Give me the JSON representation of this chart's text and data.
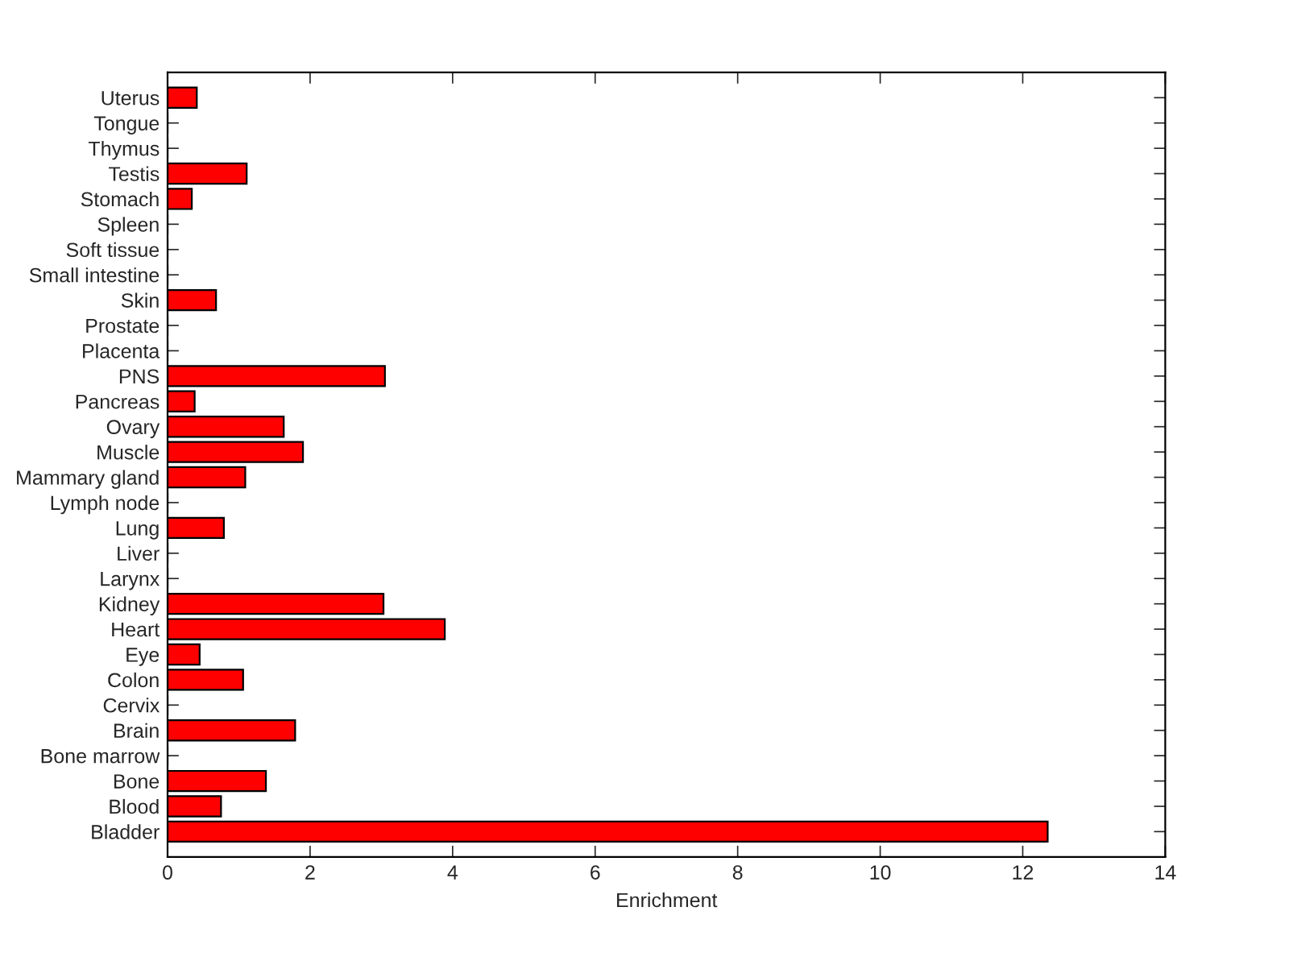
{
  "chart_data": {
    "type": "bar",
    "orientation": "horizontal",
    "xlabel": "Enrichment",
    "categories": [
      "Uterus",
      "Tongue",
      "Thymus",
      "Testis",
      "Stomach",
      "Spleen",
      "Soft tissue",
      "Small intestine",
      "Skin",
      "Prostate",
      "Placenta",
      "PNS",
      "Pancreas",
      "Ovary",
      "Muscle",
      "Mammary gland",
      "Lymph node",
      "Lung",
      "Liver",
      "Larynx",
      "Kidney",
      "Heart",
      "Eye",
      "Colon",
      "Cervix",
      "Brain",
      "Bone marrow",
      "Bone",
      "Blood",
      "Bladder"
    ],
    "values": [
      0.41,
      0,
      0,
      1.11,
      0.34,
      0,
      0,
      0,
      0.68,
      0,
      0,
      3.05,
      0.38,
      1.63,
      1.9,
      1.09,
      0,
      0.79,
      0,
      0,
      3.03,
      3.89,
      0.45,
      1.06,
      0,
      1.79,
      0,
      1.38,
      0.75,
      12.35
    ],
    "color": "#ff0000",
    "xlim": [
      0,
      14
    ],
    "xticks": [
      0,
      2,
      4,
      6,
      8,
      10,
      12,
      14
    ],
    "grid": false
  }
}
